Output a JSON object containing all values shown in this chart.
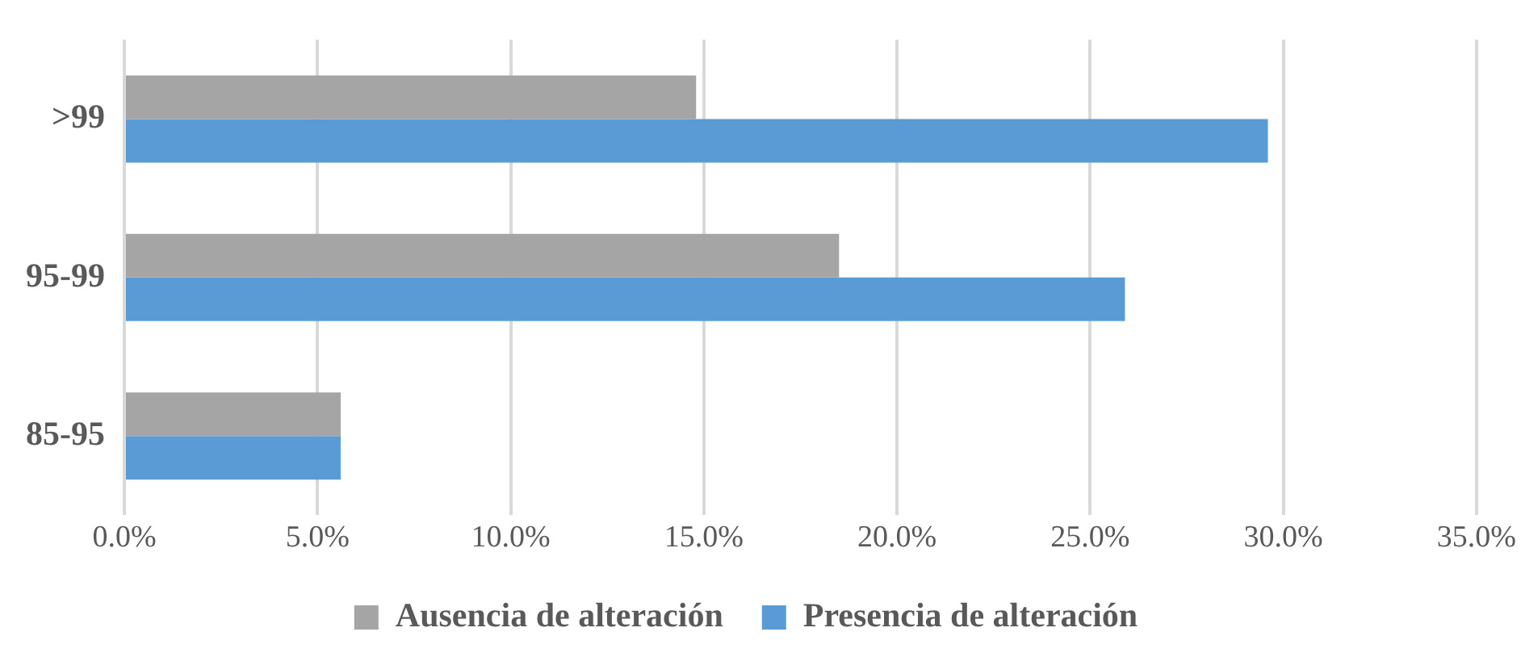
{
  "chart_data": {
    "type": "bar",
    "orientation": "horizontal",
    "categories": [
      ">99",
      "95-99",
      "85-95"
    ],
    "series": [
      {
        "name": "Ausencia de alteración",
        "color": "#a5a5a5",
        "values": [
          14.8,
          18.5,
          5.6
        ]
      },
      {
        "name": "Presencia de alteración",
        "color": "#5b9bd5",
        "values": [
          29.6,
          25.9,
          5.6
        ]
      }
    ],
    "xlim": [
      0,
      35
    ],
    "xticks": [
      {
        "value": 0,
        "label": "0.0%"
      },
      {
        "value": 5,
        "label": "5.0%"
      },
      {
        "value": 10,
        "label": "10.0%"
      },
      {
        "value": 15,
        "label": "15.0%"
      },
      {
        "value": 20,
        "label": "20.0%"
      },
      {
        "value": 25,
        "label": "25.0%"
      },
      {
        "value": 30,
        "label": "30.0%"
      },
      {
        "value": 35,
        "label": "35.0%"
      }
    ],
    "grid": "x",
    "legend": "bottom"
  }
}
